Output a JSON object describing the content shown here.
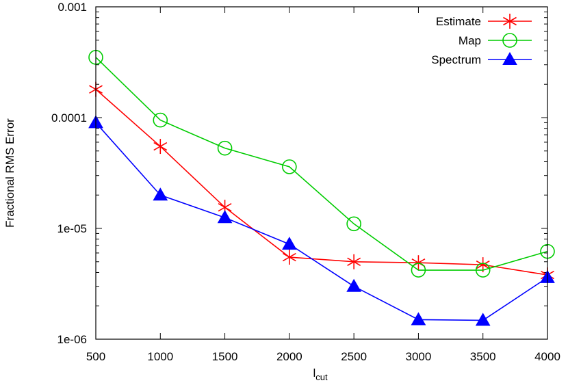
{
  "chart_data": {
    "type": "line",
    "ylabel": "Fractional RMS Error",
    "xlabel_main": "l",
    "xlabel_sub": "cut",
    "x": [
      500,
      1000,
      1500,
      2000,
      2500,
      3000,
      3500,
      4000
    ],
    "xlim": [
      500,
      4000
    ],
    "x_ticks": [
      500,
      1000,
      1500,
      2000,
      2500,
      3000,
      3500,
      4000
    ],
    "x_tick_labels": [
      "500",
      "1000",
      "1500",
      "2000",
      "2500",
      "3000",
      "3500",
      "4000"
    ],
    "ylim": [
      1e-06,
      0.001
    ],
    "y_scale": "log",
    "y_ticks": [
      1e-06,
      1e-05,
      0.0001,
      0.001
    ],
    "y_tick_labels": [
      "1e-06",
      "1e-05",
      "0.0001",
      "0.001"
    ],
    "legend_position": "top-right",
    "series": [
      {
        "name": "Estimate",
        "color": "#ff0000",
        "marker": "star",
        "values": [
          0.00018,
          5.5e-05,
          1.55e-05,
          5.5e-06,
          5e-06,
          4.9e-06,
          4.7e-06,
          3.8e-06
        ]
      },
      {
        "name": "Map",
        "color": "#00cc00",
        "marker": "circle",
        "values": [
          0.00035,
          9.5e-05,
          5.3e-05,
          3.6e-05,
          1.1e-05,
          4.2e-06,
          4.2e-06,
          6.2e-06
        ]
      },
      {
        "name": "Spectrum",
        "color": "#0000ff",
        "marker": "triangle",
        "values": [
          9e-05,
          2e-05,
          1.25e-05,
          7.2e-06,
          3e-06,
          1.5e-06,
          1.48e-06,
          3.6e-06
        ]
      }
    ]
  }
}
